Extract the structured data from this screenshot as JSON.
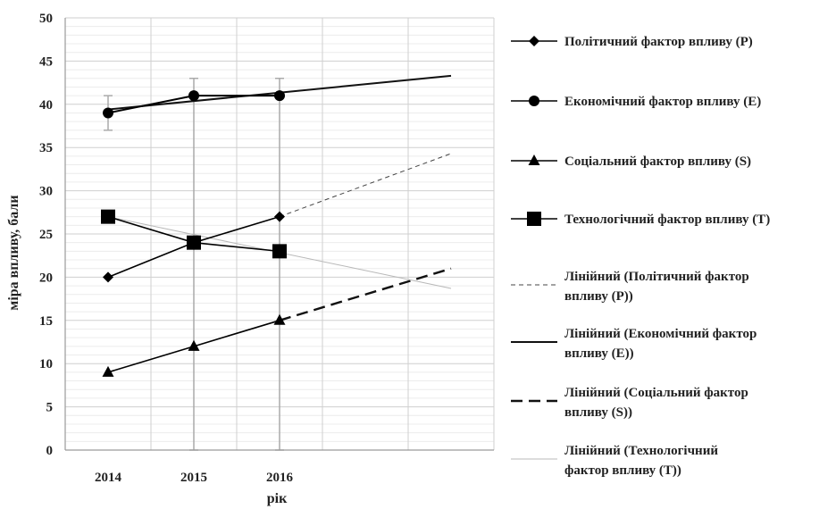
{
  "chart_data": {
    "type": "line",
    "xlabel": "рік",
    "ylabel": "міра впливу, бали",
    "ylim": [
      0,
      50
    ],
    "yticks": [
      0,
      5,
      10,
      15,
      20,
      25,
      30,
      35,
      40,
      45,
      50
    ],
    "xticks": [
      "2014",
      "2015",
      "2016"
    ],
    "x": [
      2014,
      2015,
      2016
    ],
    "x_range": [
      2013.5,
      2018.5
    ],
    "grid": true,
    "legend_position": "right",
    "series": [
      {
        "name": "Політичний фактор впливу (P)",
        "marker": "diamond",
        "values": [
          20,
          24,
          27
        ]
      },
      {
        "name": "Економічний фактор впливу (E)",
        "marker": "circle",
        "values": [
          39,
          41,
          41
        ]
      },
      {
        "name": "Соціальний фактор впливу (S)",
        "marker": "triangle",
        "values": [
          9,
          12,
          15
        ]
      },
      {
        "name": "Технологічний фактор впливу (T)",
        "marker": "square",
        "values": [
          27,
          24,
          23
        ]
      }
    ],
    "error_bars": [
      {
        "x": 2014,
        "low": 37,
        "high": 41
      },
      {
        "x": 2015,
        "low": 0,
        "high": 43
      },
      {
        "x": 2016,
        "low": 0,
        "high": 43
      }
    ],
    "trendlines": [
      {
        "legend_line1": "Лінійний     (Політичний фактор",
        "legend_line2": "впливу (P))",
        "style": "dashed-thin",
        "from": [
          2016,
          27
        ],
        "to": [
          2018,
          34.3
        ]
      },
      {
        "legend_line1": "Лінійний     (Економічний фактор",
        "legend_line2": "впливу (E))",
        "style": "solid",
        "from": [
          2014,
          39.4
        ],
        "to": [
          2018,
          43.3
        ]
      },
      {
        "legend_line1": "Лінійний     (Соціальний фактор",
        "legend_line2": "впливу (S))",
        "style": "dashed-thick",
        "from": [
          2016,
          15
        ],
        "to": [
          2018,
          21
        ]
      },
      {
        "legend_line1": "Лінійний     (Технологічний",
        "legend_line2": "фактор впливу (T))",
        "style": "solid-thin",
        "from": [
          2014,
          27
        ],
        "to": [
          2018,
          18.7
        ]
      }
    ]
  }
}
